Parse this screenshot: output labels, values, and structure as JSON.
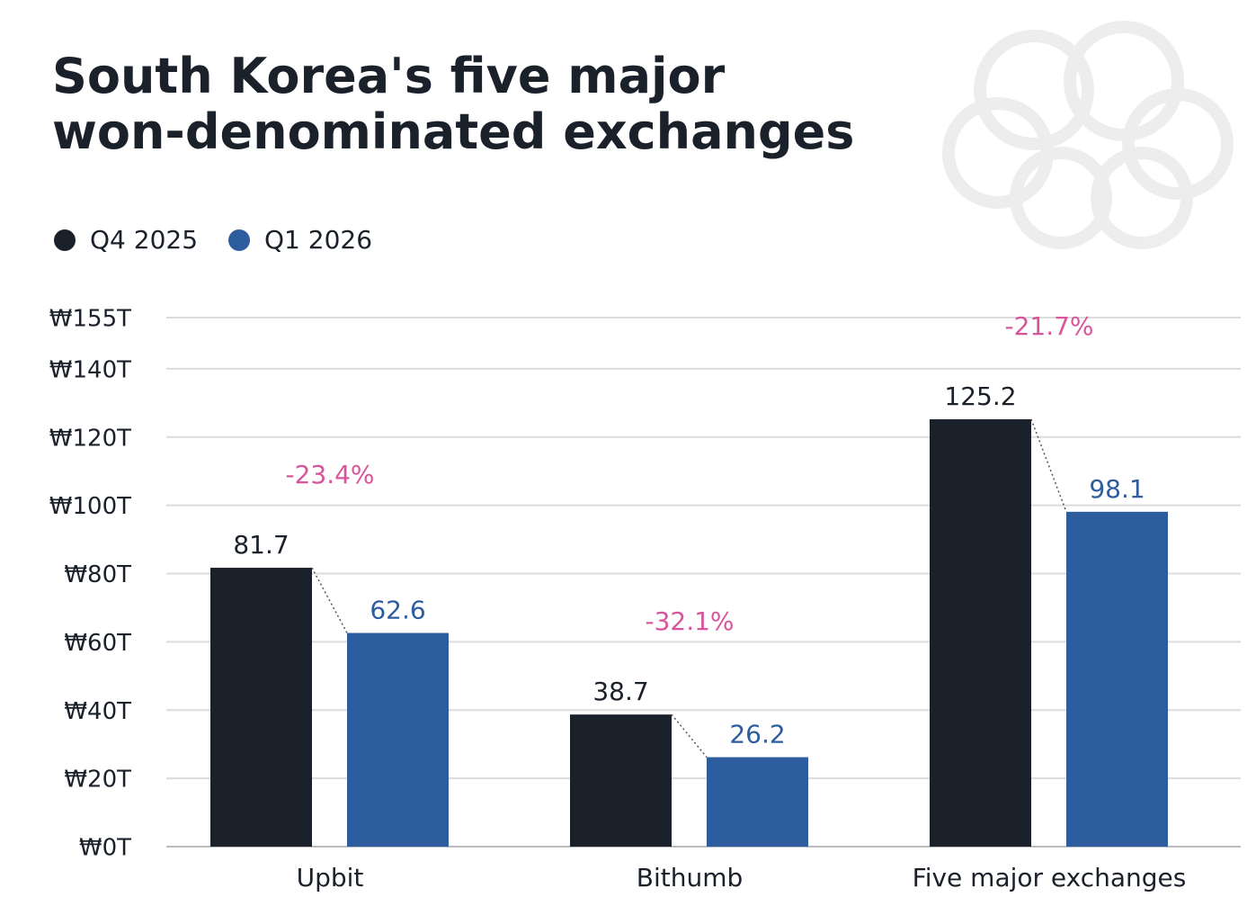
{
  "chart_data": {
    "type": "bar",
    "title": [
      "South Korea's five major",
      "won-denominated exchanges"
    ],
    "categories": [
      "Upbit",
      "Bithumb",
      "Five major exchanges"
    ],
    "series": [
      {
        "name": "Q4 2025",
        "color": "#1b212b",
        "values": [
          81.7,
          38.7,
          125.2
        ]
      },
      {
        "name": "Q1 2026",
        "color": "#2d5c9f",
        "values": [
          62.6,
          26.2,
          98.1
        ]
      }
    ],
    "change_labels": [
      "-23.4%",
      "-32.1%",
      "-21.7%"
    ],
    "change_color": "#d9559b",
    "ylim": [
      0,
      160
    ],
    "yticks": [
      {
        "value": 0,
        "label": "₩0T"
      },
      {
        "value": 20,
        "label": "₩20T"
      },
      {
        "value": 40,
        "label": "₩40T"
      },
      {
        "value": 60,
        "label": "₩60T"
      },
      {
        "value": 80,
        "label": "₩80T"
      },
      {
        "value": 100,
        "label": "₩100T"
      },
      {
        "value": 120,
        "label": "₩120T"
      },
      {
        "value": 140,
        "label": "₩140T"
      },
      {
        "value": 155,
        "label": "₩155T"
      }
    ],
    "grid": true
  }
}
